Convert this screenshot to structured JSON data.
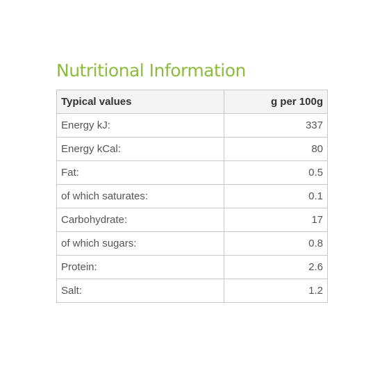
{
  "title": "Nutritional Information",
  "table": {
    "headers": [
      "Typical values",
      "g per 100g"
    ],
    "rows": [
      {
        "label": "Energy kJ:",
        "value": "337"
      },
      {
        "label": "Energy kCal:",
        "value": "80"
      },
      {
        "label": "Fat:",
        "value": "0.5"
      },
      {
        "label": "of which saturates:",
        "value": "0.1"
      },
      {
        "label": "Carbohydrate:",
        "value": "17"
      },
      {
        "label": "of which sugars:",
        "value": "0.8"
      },
      {
        "label": "Protein:",
        "value": "2.6"
      },
      {
        "label": "Salt:",
        "value": "1.2"
      }
    ]
  },
  "colors": {
    "title": "#8cbd3a",
    "border": "#c8c8c8",
    "header_bg": "#f4f4f4",
    "text": "#555555"
  }
}
